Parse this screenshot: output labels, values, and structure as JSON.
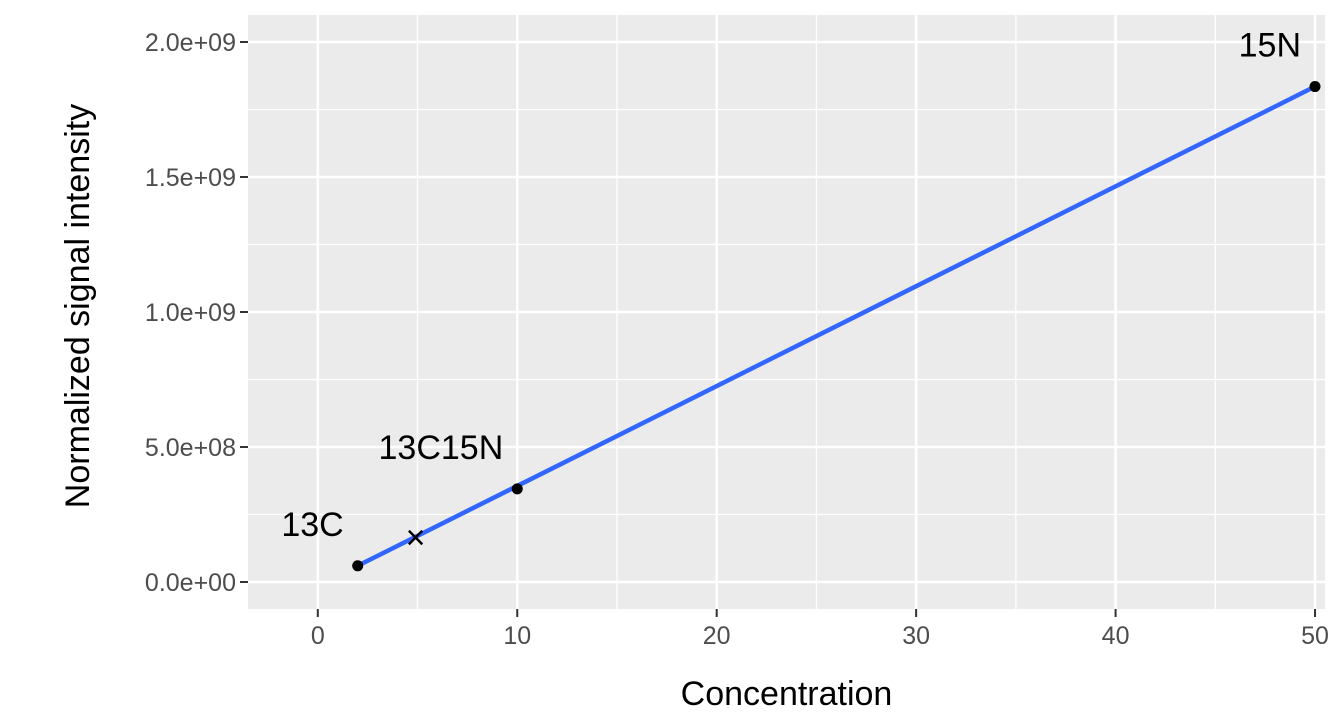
{
  "chart_data": {
    "type": "line",
    "title": "",
    "xlabel": "Concentration",
    "ylabel": "Normalized signal intensity",
    "xlim": [
      -3.5,
      50.5
    ],
    "ylim": [
      -100000000,
      2100000000
    ],
    "x_ticks": [
      0,
      10,
      20,
      30,
      40,
      50
    ],
    "x_tick_labels": [
      "0",
      "10",
      "20",
      "30",
      "40",
      "50"
    ],
    "y_ticks": [
      0,
      500000000,
      1000000000,
      1500000000,
      2000000000
    ],
    "y_tick_labels": [
      "0.0e+00",
      "5.0e+08",
      "1.0e+09",
      "1.5e+09",
      "2.0e+09"
    ],
    "grid": true,
    "panel_background": "#ebebeb",
    "grid_color": "#ffffff",
    "fit_line": {
      "color": "#3366ff",
      "x": [
        2,
        50
      ],
      "y": [
        60000000,
        1835000000
      ]
    },
    "points": [
      {
        "label": "13C",
        "x": 2,
        "y": 60000000
      },
      {
        "label": "13C15N",
        "x": 10,
        "y": 345000000
      },
      {
        "label": "15N",
        "x": 50,
        "y": 1835000000
      }
    ],
    "unknown_marker": {
      "symbol": "×",
      "x": 4.9,
      "y": 155000000
    }
  }
}
